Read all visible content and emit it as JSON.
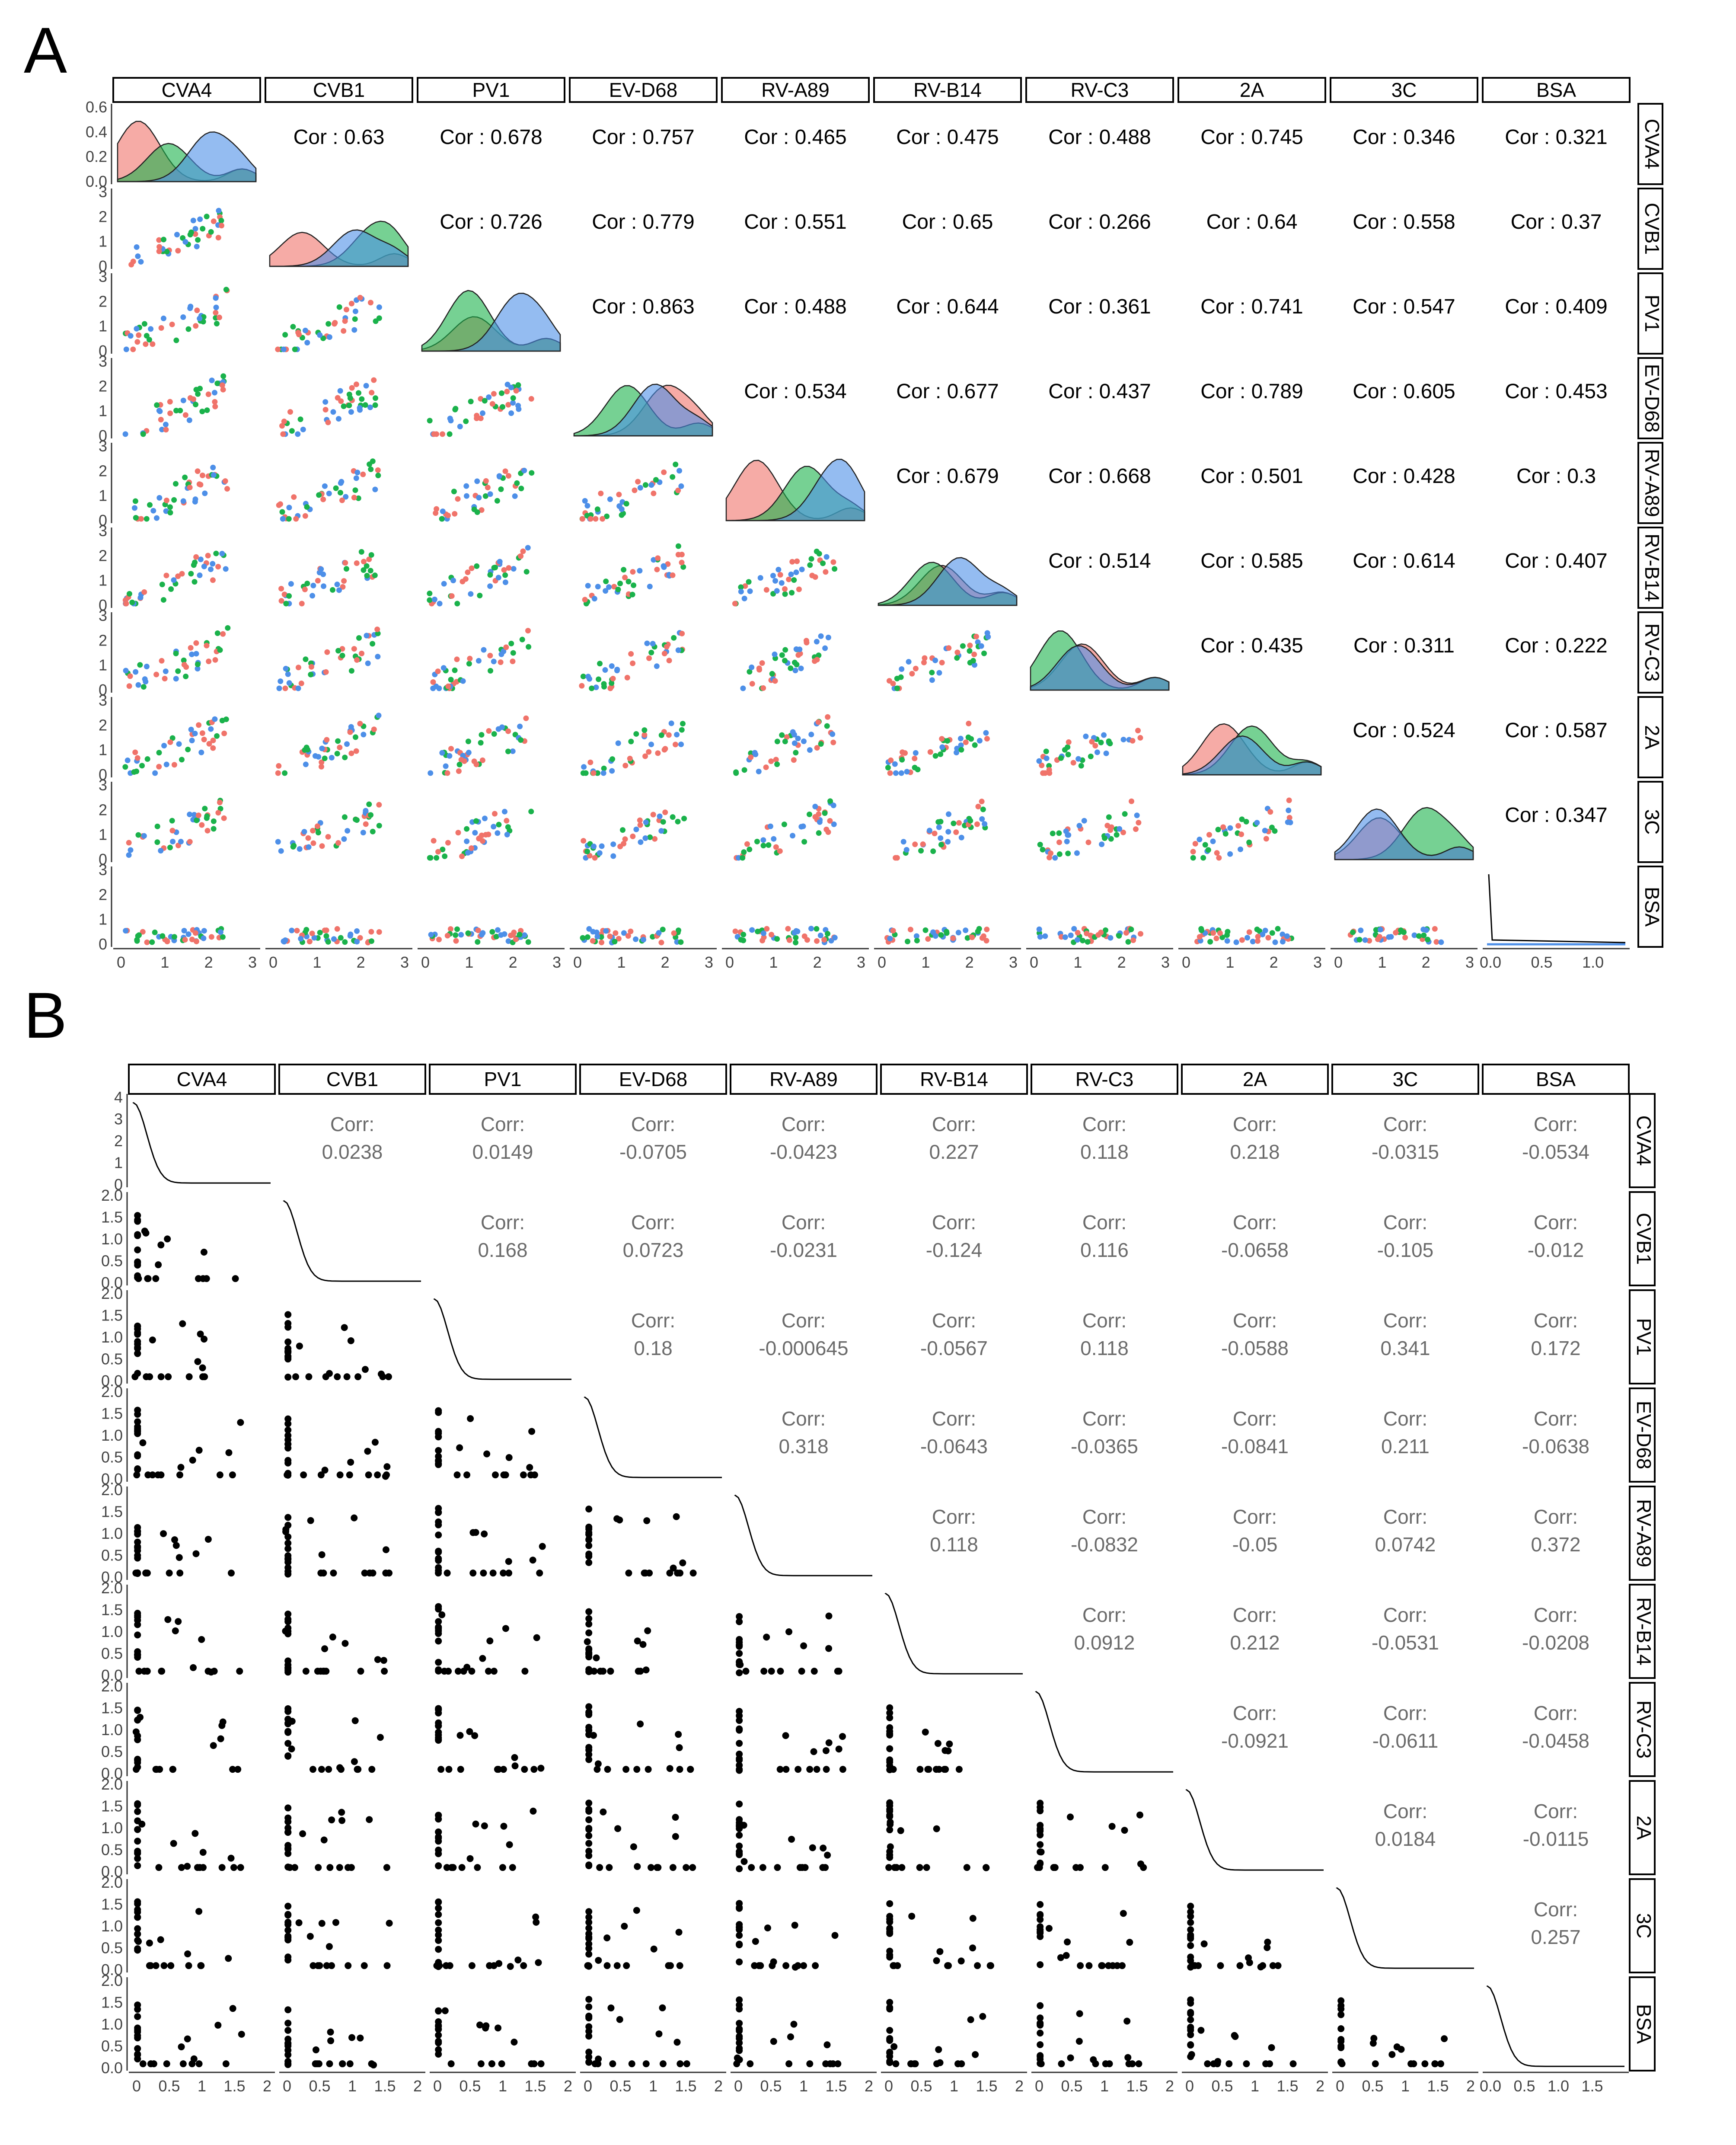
{
  "chart_data": [
    {
      "panel": "A",
      "type": "scatter-matrix",
      "variables": [
        "CVA4",
        "CVB1",
        "PV1",
        "EV-D68",
        "RV-A89",
        "RV-B14",
        "RV-C3",
        "2A",
        "3C",
        "BSA"
      ],
      "cor_label": "Cor : ",
      "group_colors": [
        "#f0736a",
        "#1ab24b",
        "#4d8fe8"
      ],
      "axis_range": [
        0,
        3
      ],
      "axis_ticks": [
        "0",
        "1",
        "2",
        "3"
      ],
      "diag_y_ticks": [
        "0.0",
        "0.2",
        "0.4",
        "0.6"
      ],
      "offdiag_y_ticks": [
        "0",
        "1",
        "2",
        "3"
      ],
      "bsa_x_ticks": [
        "0.0",
        "0.5",
        "1.0"
      ],
      "correlations": [
        [
          "",
          "0.63",
          "0.678",
          "0.757",
          "0.465",
          "0.475",
          "0.488",
          "0.745",
          "0.346",
          "0.321"
        ],
        [
          "",
          "",
          "0.726",
          "0.779",
          "0.551",
          "0.65",
          "0.266",
          "0.64",
          "0.558",
          "0.37"
        ],
        [
          "",
          "",
          "",
          "0.863",
          "0.488",
          "0.644",
          "0.361",
          "0.741",
          "0.547",
          "0.409"
        ],
        [
          "",
          "",
          "",
          "",
          "0.534",
          "0.677",
          "0.437",
          "0.789",
          "0.605",
          "0.453"
        ],
        [
          "",
          "",
          "",
          "",
          "",
          "0.679",
          "0.668",
          "0.501",
          "0.428",
          "0.3"
        ],
        [
          "",
          "",
          "",
          "",
          "",
          "",
          "0.514",
          "0.585",
          "0.614",
          "0.407"
        ],
        [
          "",
          "",
          "",
          "",
          "",
          "",
          "",
          "0.435",
          "0.311",
          "0.222"
        ],
        [
          "",
          "",
          "",
          "",
          "",
          "",
          "",
          "",
          "0.524",
          "0.587"
        ],
        [
          "",
          "",
          "",
          "",
          "",
          "",
          "",
          "",
          "",
          "0.347"
        ],
        [
          "",
          "",
          "",
          "",
          "",
          "",
          "",
          "",
          "",
          ""
        ]
      ]
    },
    {
      "panel": "B",
      "type": "scatter-matrix",
      "variables": [
        "CVA4",
        "CVB1",
        "PV1",
        "EV-D68",
        "RV-A89",
        "RV-B14",
        "RV-C3",
        "2A",
        "3C",
        "BSA"
      ],
      "corr_label": "Corr:",
      "axis_range": [
        0,
        2
      ],
      "axis_ticks": [
        "0",
        "0.5",
        "1",
        "1.5",
        "2"
      ],
      "cva4_x_ticks": [
        "0",
        "0.5",
        "1",
        "1.5",
        "2"
      ],
      "bsa_x_ticks": [
        "0.0",
        "0.5",
        "1.0",
        "1.5"
      ],
      "diag_y_ticks": [
        "0",
        "1",
        "2",
        "3",
        "4"
      ],
      "offdiag_y_ticks": [
        "0.0",
        "0.5",
        "1.0",
        "1.5",
        "2.0"
      ],
      "correlations": [
        [
          "",
          "0.0238",
          "0.0149",
          "-0.0705",
          "-0.0423",
          "0.227",
          "0.118",
          "0.218",
          "-0.0315",
          "-0.0534"
        ],
        [
          "",
          "",
          "0.168",
          "0.0723",
          "-0.0231",
          "-0.124",
          "0.116",
          "-0.0658",
          "-0.105",
          "-0.012"
        ],
        [
          "",
          "",
          "",
          "0.18",
          "-0.000645",
          "-0.0567",
          "0.118",
          "-0.0588",
          "0.341",
          "0.172"
        ],
        [
          "",
          "",
          "",
          "",
          "0.318",
          "-0.0643",
          "-0.0365",
          "-0.0841",
          "0.211",
          "-0.0638"
        ],
        [
          "",
          "",
          "",
          "",
          "",
          "0.118",
          "-0.0832",
          "-0.05",
          "0.0742",
          "0.372"
        ],
        [
          "",
          "",
          "",
          "",
          "",
          "",
          "0.0912",
          "0.212",
          "-0.0531",
          "-0.0208"
        ],
        [
          "",
          "",
          "",
          "",
          "",
          "",
          "",
          "-0.0921",
          "-0.0611",
          "-0.0458"
        ],
        [
          "",
          "",
          "",
          "",
          "",
          "",
          "",
          "",
          "0.0184",
          "-0.0115"
        ],
        [
          "",
          "",
          "",
          "",
          "",
          "",
          "",
          "",
          "",
          "0.257"
        ],
        [
          "",
          "",
          "",
          "",
          "",
          "",
          "",
          "",
          "",
          ""
        ]
      ]
    }
  ],
  "labels": {
    "panel_a": "A",
    "panel_b": "B"
  }
}
